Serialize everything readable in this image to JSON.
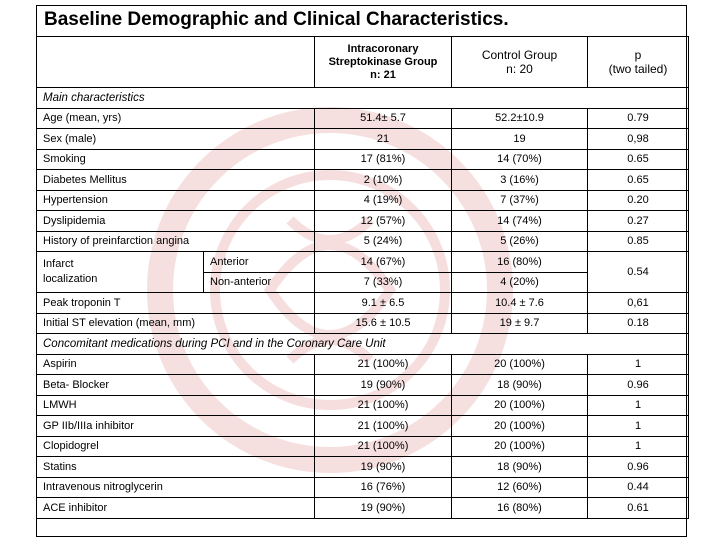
{
  "title": "Baseline Demographic and Clinical Characteristics.",
  "columns": {
    "streptokinase": [
      "Intracoronary",
      "Streptokinase Group",
      "n: 21"
    ],
    "control": [
      "Control Group",
      "n: 20"
    ],
    "p": [
      "p",
      "(two tailed)"
    ]
  },
  "sections": {
    "main": "Main characteristics",
    "meds": "Concomitant medications during PCI and in the Coronary Care Unit"
  },
  "rows": {
    "age": {
      "label": "Age (mean, yrs)",
      "sk": "51.4± 5.7",
      "ctrl": "52.2±10.9",
      "p": "0.79"
    },
    "sex": {
      "label": "Sex (male)",
      "sk": "21",
      "ctrl": "19",
      "p": "0,98"
    },
    "smoking": {
      "label": "Smoking",
      "sk": "17 (81%)",
      "ctrl": "14 (70%)",
      "p": "0.65"
    },
    "diabetes": {
      "label": "Diabetes Mellitus",
      "sk": "2 (10%)",
      "ctrl": "3 (16%)",
      "p": "0.65"
    },
    "hypertension": {
      "label": "Hypertension",
      "sk": "4 (19%)",
      "ctrl": "7 (37%)",
      "p": "0.20"
    },
    "dyslipidemia": {
      "label": "Dyslipidemia",
      "sk": "12 (57%)",
      "ctrl": "14 (74%)",
      "p": "0.27"
    },
    "angina": {
      "label": "History of preinfarction angina",
      "sk": "5 (24%)",
      "ctrl": "5 (26%)",
      "p": "0.85"
    },
    "infarct": {
      "label": [
        "Infarct",
        "localization"
      ],
      "anterior": {
        "label": "Anterior",
        "sk": "14 (67%)",
        "ctrl": "16 (80%)"
      },
      "nonanterior": {
        "label": "Non-anterior",
        "sk": "7 (33%)",
        "ctrl": "4 (20%)"
      },
      "p": "0.54"
    },
    "troponin": {
      "label": "Peak troponin T",
      "sk": "9.1 ± 6.5",
      "ctrl": "10.4 ± 7.6",
      "p": "0,61"
    },
    "st": {
      "label": "Initial ST elevation (mean, mm)",
      "sk": "15.6 ± 10.5",
      "ctrl": "19 ± 9.7",
      "p": "0.18"
    },
    "aspirin": {
      "label": "Aspirin",
      "sk": "21 (100%)",
      "ctrl": "20 (100%)",
      "p": "1"
    },
    "beta": {
      "label": "Beta- Blocker",
      "sk": "19 (90%)",
      "ctrl": "18 (90%)",
      "p": "0.96"
    },
    "lmwh": {
      "label": "LMWH",
      "sk": "21 (100%)",
      "ctrl": "20 (100%)",
      "p": "1"
    },
    "gp": {
      "label": "GP IIb/IIIa inhibitor",
      "sk": "21 (100%)",
      "ctrl": "20 (100%)",
      "p": "1"
    },
    "clopidogrel": {
      "label": "Clopidogrel",
      "sk": "21 (100%)",
      "ctrl": "20 (100%)",
      "p": "1"
    },
    "statins": {
      "label": "Statins",
      "sk": "19 (90%)",
      "ctrl": "18 (90%)",
      "p": "0.96"
    },
    "ntg": {
      "label": "Intravenous nitroglycerin",
      "sk": "16 (76%)",
      "ctrl": "12 (60%)",
      "p": "0.44"
    },
    "ace": {
      "label": "ACE inhibitor",
      "sk": "19 (90%)",
      "ctrl": "16 (80%)",
      "p": "0.61"
    }
  },
  "watermark": {
    "color": "#e8b4b4",
    "icon": "university-seal-icon"
  }
}
